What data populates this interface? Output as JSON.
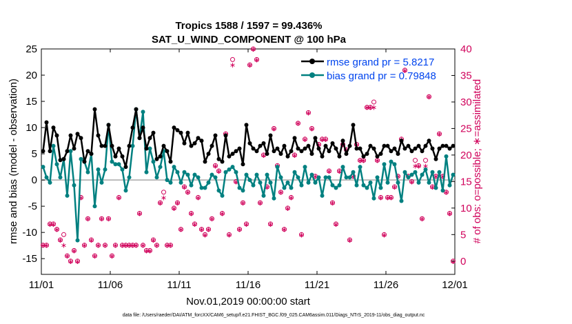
{
  "title_line1": "Tropics 1588 / 1597 = 99.436%",
  "title_line2": "SAT_U_WIND_COMPONENT @ 100 hPa",
  "footer": "data file: /Users/raeder/DAI/ATM_forcXX/CAM6_setup/f.e21.FHIST_BGC.f09_025.CAM6assim.011/Diags_NTrS_2019-11/obs_diag_output.nc",
  "colors": {
    "rmse": "#000000",
    "bias": "#008080",
    "obs": "#d0005a",
    "zero": "#bbbbbb",
    "legend_text": "#0044ee"
  },
  "chart_data": {
    "type": "line",
    "title": "Tropics 1588 / 1597 = 99.436%\nSAT_U_WIND_COMPONENT @ 100 hPa",
    "xlabel": "Nov.01,2019 00:00:00 start",
    "ylabel": "rmse and bias (model - observation)",
    "y2label": "# of obs: o=possible; ∗=assimilated",
    "xlim": [
      0,
      30
    ],
    "ylim": [
      -18,
      25
    ],
    "y2lim": [
      -2.5,
      40
    ],
    "xticks": [
      0,
      5,
      10,
      15,
      20,
      25,
      30
    ],
    "xtick_labels": [
      "11/01",
      "11/06",
      "11/11",
      "11/16",
      "11/21",
      "11/26",
      "12/01"
    ],
    "yticks": [
      -15,
      -10,
      -5,
      0,
      5,
      10,
      15,
      20,
      25
    ],
    "ytick_labels": [
      "-15",
      "-10",
      "-5",
      "0",
      "5",
      "10",
      "15",
      "20",
      "25"
    ],
    "y2ticks": [
      0,
      5,
      10,
      15,
      20,
      25,
      30,
      35,
      40
    ],
    "y2tick_labels": [
      "0",
      "5",
      "10",
      "15",
      "20",
      "25",
      "30",
      "35",
      "40"
    ],
    "legend": [
      "rmse grand pr = 5.8217",
      "bias grand pr = 0.79848"
    ],
    "legend_position": "top-right",
    "x": [
      0.125,
      0.375,
      0.625,
      0.875,
      1.125,
      1.375,
      1.625,
      1.875,
      2.125,
      2.375,
      2.625,
      2.875,
      3.125,
      3.375,
      3.625,
      3.875,
      4.125,
      4.375,
      4.625,
      4.875,
      5.125,
      5.375,
      5.625,
      5.875,
      6.125,
      6.375,
      6.625,
      6.875,
      7.125,
      7.375,
      7.625,
      7.875,
      8.125,
      8.375,
      8.625,
      8.875,
      9.125,
      9.375,
      9.625,
      9.875,
      10.125,
      10.375,
      10.625,
      10.875,
      11.125,
      11.375,
      11.625,
      11.875,
      12.125,
      12.375,
      12.625,
      12.875,
      13.125,
      13.375,
      13.625,
      13.875,
      14.125,
      14.375,
      14.625,
      14.875,
      15.125,
      15.375,
      15.625,
      15.875,
      16.125,
      16.375,
      16.625,
      16.875,
      17.125,
      17.375,
      17.625,
      17.875,
      18.125,
      18.375,
      18.625,
      18.875,
      19.125,
      19.375,
      19.625,
      19.875,
      20.125,
      20.375,
      20.625,
      20.875,
      21.125,
      21.375,
      21.625,
      21.875,
      22.125,
      22.375,
      22.625,
      22.875,
      23.125,
      23.375,
      23.625,
      23.875,
      24.125,
      24.375,
      24.625,
      24.875,
      25.125,
      25.375,
      25.625,
      25.875,
      26.125,
      26.375,
      26.625,
      26.875,
      27.125,
      27.375,
      27.625,
      27.875,
      28.125,
      28.375,
      28.625,
      28.875,
      29.125,
      29.375,
      29.625,
      29.875
    ],
    "series": [
      {
        "name": "rmse",
        "values": [
          5.5,
          11.0,
          5.5,
          10.0,
          8.5,
          3.8,
          4.0,
          5.5,
          8.5,
          6.0,
          8.8,
          8.0,
          3.5,
          5.5,
          5.0,
          13.5,
          8.5,
          6.5,
          6.5,
          10.5,
          6.5,
          4.5,
          6.0,
          4.5,
          2.5,
          6.5,
          10.0,
          13.5,
          8.0,
          10.0,
          6.0,
          8.0,
          9.0,
          4.0,
          4.5,
          6.5,
          5.5,
          3.5,
          10.0,
          9.5,
          9.0,
          7.0,
          9.0,
          6.5,
          7.0,
          8.0,
          7.5,
          3.5,
          5.0,
          6.5,
          8.5,
          4.0,
          3.5,
          8.5,
          4.5,
          5.0,
          5.5,
          6.0,
          3.0,
          10.5,
          7.0,
          6.0,
          5.5,
          6.5,
          7.0,
          5.0,
          8.5,
          5.5,
          6.0,
          5.0,
          6.5,
          4.5,
          5.5,
          8.0,
          6.0,
          5.5,
          6.0,
          6.5,
          5.0,
          8.0,
          6.0,
          4.5,
          6.5,
          5.5,
          7.0,
          6.0,
          4.5,
          7.5,
          5.0,
          6.5,
          10.5,
          6.0,
          6.0,
          4.5,
          5.0,
          6.5,
          6.0,
          4.5,
          5.0,
          6.5,
          6.5,
          5.5,
          6.0,
          5.0,
          7.5,
          6.0,
          6.5,
          5.5,
          6.0,
          6.5,
          5.5,
          6.5,
          7.5,
          6.0,
          4.0,
          6.0,
          6.5,
          6.5,
          6.0,
          6.5
        ]
      },
      {
        "name": "bias",
        "values": [
          2.5,
          0.5,
          -0.5,
          6.5,
          3.0,
          0.5,
          4.0,
          -3.0,
          5.5,
          -1.0,
          -11.5,
          4.0,
          3.5,
          1.5,
          5.0,
          -5.0,
          2.0,
          -0.5,
          2.0,
          10.5,
          3.5,
          3.0,
          3.0,
          2.0,
          -2.0,
          0.5,
          6.5,
          13.5,
          8.0,
          13.0,
          1.5,
          6.0,
          3.5,
          0.5,
          2.5,
          5.5,
          0.0,
          -0.5,
          2.5,
          1.5,
          -0.5,
          1.5,
          1.0,
          -1.0,
          1.0,
          0.5,
          -1.5,
          -1.5,
          -0.5,
          1.0,
          0.5,
          -2.0,
          -3.0,
          1.5,
          2.0,
          2.5,
          1.5,
          -1.5,
          -2.0,
          1.0,
          0.0,
          -1.0,
          1.0,
          -0.5,
          -3.0,
          1.0,
          -0.5,
          -3.5,
          2.5,
          0.5,
          -1.5,
          -0.5,
          -1.5,
          1.5,
          0.5,
          -1.0,
          2.5,
          -0.5,
          1.0,
          -0.5,
          0.5,
          -3.0,
          0.5,
          0.5,
          -1.0,
          -1.5,
          -1.0,
          2.5,
          0.5,
          0.5,
          1.5,
          -1.0,
          2.5,
          -1.0,
          -1.5,
          -0.5,
          -3.5,
          0.5,
          -1.5,
          3.0,
          -0.5,
          3.5,
          3.0,
          -0.5,
          -4.0,
          1.5,
          0.5,
          1.0,
          1.5,
          -0.5,
          1.0,
          2.0,
          -0.5,
          1.5,
          -1.5,
          1.5,
          -2.0,
          4.5,
          -1.0,
          1.0
        ]
      },
      {
        "name": "obs_possible",
        "axis": "right",
        "values": [
          3,
          3,
          7,
          7,
          6,
          4,
          5,
          1,
          0,
          2,
          0,
          12,
          3,
          8,
          4,
          1,
          3,
          8,
          3,
          8,
          1,
          3,
          12,
          3,
          3,
          3,
          3,
          3,
          9,
          3,
          2,
          2,
          4,
          3,
          11,
          13,
          3,
          3,
          10,
          11,
          6,
          14,
          13,
          9,
          7,
          12,
          6,
          5,
          6,
          8,
          18,
          17,
          9,
          24,
          5,
          38,
          15,
          6,
          11,
          7,
          37,
          40,
          38,
          11,
          20,
          14,
          7,
          25,
          18,
          13,
          6,
          10,
          12,
          20,
          26,
          5,
          23,
          28,
          25,
          16,
          22,
          23,
          23,
          17,
          11,
          7,
          17,
          22,
          21,
          4,
          16,
          22,
          19,
          19,
          29,
          29,
          30,
          19,
          12,
          5,
          12,
          12,
          14,
          16,
          23,
          36,
          16,
          15,
          19,
          18,
          8,
          19,
          31,
          14,
          16,
          24,
          16,
          13,
          9,
          0
        ]
      },
      {
        "name": "obs_assimilated",
        "axis": "right",
        "values": [
          3,
          3,
          7,
          7,
          6,
          4,
          3,
          1,
          0,
          2,
          0,
          12,
          3,
          8,
          4,
          1,
          3,
          8,
          3,
          8,
          1,
          3,
          12,
          3,
          3,
          3,
          3,
          3,
          9,
          3,
          2,
          2,
          4,
          3,
          11,
          12,
          3,
          3,
          10,
          11,
          6,
          14,
          13,
          9,
          7,
          12,
          6,
          5,
          6,
          8,
          18,
          17,
          9,
          24,
          5,
          37,
          15,
          6,
          11,
          7,
          37,
          40,
          38,
          11,
          20,
          14,
          7,
          25,
          18,
          13,
          6,
          10,
          12,
          20,
          26,
          5,
          23,
          28,
          25,
          16,
          22,
          23,
          23,
          17,
          11,
          7,
          17,
          22,
          21,
          4,
          16,
          22,
          19,
          19,
          29,
          29,
          29,
          19,
          12,
          5,
          12,
          12,
          14,
          16,
          23,
          36,
          16,
          15,
          18,
          18,
          8,
          18,
          31,
          14,
          16,
          24,
          16,
          13,
          9,
          0
        ]
      }
    ]
  }
}
